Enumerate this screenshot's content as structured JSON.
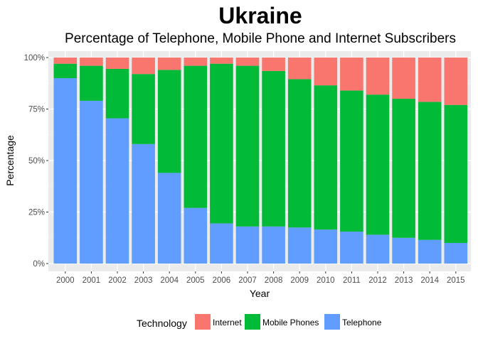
{
  "chart_data": {
    "type": "bar",
    "stacked": true,
    "title": "Ukraine",
    "subtitle": "Percentage of Telephone, Mobile Phone and Internet Subscribers",
    "xlabel": "Year",
    "ylabel": "Percentage",
    "ylim": [
      0,
      100
    ],
    "yticks": [
      0,
      25,
      50,
      75,
      100
    ],
    "ytick_labels": [
      "0%",
      "25%",
      "50%",
      "75%",
      "100%"
    ],
    "grid": true,
    "legend_position": "bottom",
    "legend_title": "Technology",
    "categories": [
      "2000",
      "2001",
      "2002",
      "2003",
      "2004",
      "2005",
      "2006",
      "2007",
      "2008",
      "2009",
      "2010",
      "2011",
      "2012",
      "2013",
      "2014",
      "2015"
    ],
    "series": [
      {
        "name": "Telephone",
        "color": "#619CFF",
        "values": [
          90,
          79,
          70.5,
          58,
          44,
          27,
          19.5,
          18,
          18,
          17.5,
          16.5,
          15.5,
          14,
          12.5,
          11.5,
          10
        ]
      },
      {
        "name": "Mobile Phones",
        "color": "#00BA38",
        "values": [
          7,
          17,
          24,
          34,
          50,
          69,
          77.5,
          78,
          75.5,
          72,
          70,
          68.5,
          68,
          67.5,
          67,
          67
        ]
      },
      {
        "name": "Internet",
        "color": "#F8766D",
        "values": [
          3,
          4,
          5.5,
          8,
          6,
          4,
          3,
          4,
          6.5,
          10.5,
          13.5,
          16,
          18,
          20,
          21.5,
          23
        ]
      }
    ],
    "legend_order": [
      "Internet",
      "Mobile Phones",
      "Telephone"
    ]
  }
}
